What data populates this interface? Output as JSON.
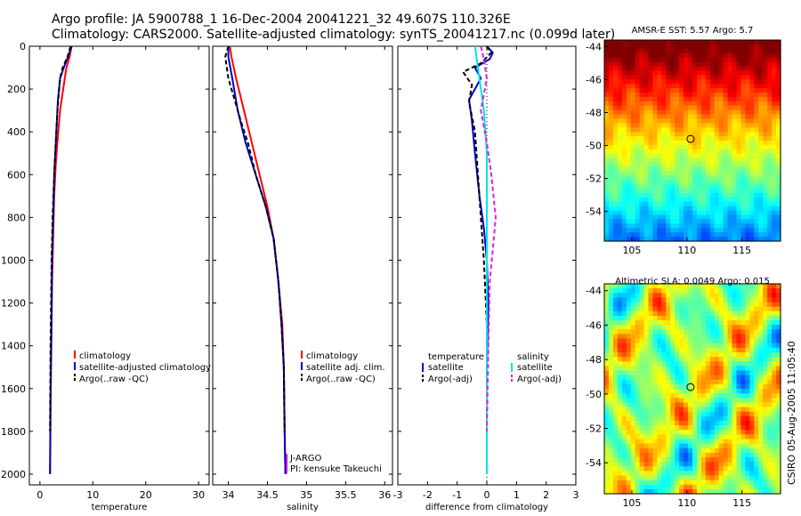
{
  "header": {
    "title_line1": "Argo profile: JA 5900788_1 16-Dec-2004 20041221_32 49.607S 110.326E",
    "title_line2": "Climatology: CARS2000. Satellite-adjusted climatology: synTS_20041217.nc (0.099d later)"
  },
  "side_credit": "CSIRO 05-Aug-2005 11:05:40",
  "colors": {
    "climatology": "#ff0000",
    "satellite": "#0000cc",
    "argo": "#000000",
    "salinity_sat": "#00e5e5",
    "salinity_argo": "#e020e0"
  },
  "chart_data": [
    {
      "type": "line",
      "xlabel": "temperature",
      "ylabel": "",
      "xlim": [
        -2,
        32
      ],
      "ylim": [
        2050,
        0
      ],
      "xticks": [
        0,
        10,
        20,
        30
      ],
      "yticks": [
        0,
        200,
        400,
        600,
        800,
        1000,
        1200,
        1400,
        1600,
        1800,
        2000
      ],
      "legend": [
        "climatology",
        "satellite-adjusted climatology",
        "Argo(..raw -QC)"
      ],
      "legend_position": "lower-right",
      "series": [
        {
          "name": "climatology",
          "color": "#ff0000",
          "dash": "",
          "x": [
            6.0,
            5.6,
            5.0,
            4.4,
            3.8,
            3.3,
            3.0,
            2.7,
            2.5,
            2.3,
            2.2,
            2.1,
            2.0,
            1.95,
            1.9
          ],
          "y": [
            0,
            50,
            100,
            200,
            300,
            450,
            550,
            700,
            900,
            1100,
            1300,
            1500,
            1700,
            1900,
            2000
          ]
        },
        {
          "name": "satellite-adjusted climatology",
          "color": "#0000cc",
          "dash": "",
          "x": [
            6.0,
            5.3,
            4.5,
            3.8,
            3.4,
            3.0,
            2.7,
            2.5,
            2.3,
            2.2,
            2.1,
            2.0,
            1.95,
            1.9
          ],
          "y": [
            0,
            50,
            100,
            150,
            250,
            450,
            600,
            800,
            1000,
            1200,
            1400,
            1600,
            1800,
            2000
          ]
        },
        {
          "name": "Argo(..raw -QC)",
          "color": "#000000",
          "dash": "5,3",
          "x": [
            5.8,
            5.2,
            4.3,
            3.8,
            3.3,
            3.0,
            2.7,
            2.4,
            2.2,
            2.1,
            2.0,
            1.95,
            1.9
          ],
          "y": [
            0,
            50,
            100,
            150,
            300,
            450,
            600,
            800,
            1000,
            1200,
            1400,
            1600,
            1800
          ]
        }
      ]
    },
    {
      "type": "line",
      "xlabel": "salinity",
      "ylabel": "",
      "xlim": [
        33.8,
        36.1
      ],
      "ylim": [
        2050,
        0
      ],
      "xticks": [
        34,
        34.5,
        35,
        35.5,
        36
      ],
      "legend": [
        "climatology",
        "satellite adj. clim.",
        "Argo(..raw -QC)"
      ],
      "legend_position": "lower-right",
      "annotations": [
        "J-ARGO",
        "PI: kensuke Takeuchi"
      ],
      "series": [
        {
          "name": "climatology",
          "color": "#ff0000",
          "dash": "",
          "x": [
            34.02,
            34.04,
            34.1,
            34.2,
            34.3,
            34.4,
            34.5,
            34.58,
            34.64,
            34.69,
            34.71,
            34.72,
            34.73
          ],
          "y": [
            0,
            50,
            150,
            300,
            450,
            600,
            750,
            900,
            1100,
            1300,
            1500,
            1800,
            2000
          ]
        },
        {
          "name": "satellite adj. clim.",
          "color": "#0000cc",
          "dash": "",
          "x": [
            34.0,
            34.0,
            34.05,
            34.12,
            34.22,
            34.35,
            34.48,
            34.58,
            34.64,
            34.68,
            34.71,
            34.72,
            34.73
          ],
          "y": [
            0,
            50,
            150,
            300,
            450,
            600,
            750,
            900,
            1100,
            1300,
            1500,
            1800,
            2000
          ]
        },
        {
          "name": "Argo(..raw -QC)",
          "color": "#000000",
          "dash": "5,3",
          "x": [
            34.0,
            33.96,
            34.0,
            34.08,
            34.16,
            34.25,
            34.35,
            34.48,
            34.58,
            34.64,
            34.68,
            34.71,
            34.72
          ],
          "y": [
            0,
            50,
            150,
            250,
            350,
            450,
            600,
            750,
            900,
            1100,
            1300,
            1500,
            1800
          ]
        }
      ]
    },
    {
      "type": "line",
      "xlabel": "difference from climatology",
      "ylabel": "",
      "xlim": [
        -3,
        3
      ],
      "ylim": [
        2050,
        0
      ],
      "xticks": [
        -3,
        -2,
        -1,
        0,
        1,
        2,
        3
      ],
      "legend_temperature_header": "temperature",
      "legend_salinity_header": "salinity",
      "legend": [
        "satellite",
        "Argo(-adj)",
        "satellite",
        "Argo(-adj)"
      ],
      "legend_position": "lower",
      "series": [
        {
          "name": "temperature satellite",
          "color": "#0000cc",
          "dash": "",
          "x": [
            0.0,
            0.2,
            0.1,
            -0.4,
            -0.2,
            -0.6,
            -0.5,
            -0.4,
            -0.25,
            -0.1,
            0.0,
            0.05,
            0.0,
            0.0,
            0.0
          ],
          "y": [
            0,
            30,
            60,
            100,
            150,
            250,
            350,
            500,
            700,
            850,
            1000,
            1200,
            1500,
            1800,
            2000
          ]
        },
        {
          "name": "temperature Argo(-adj)",
          "color": "#000000",
          "dash": "5,3",
          "x": [
            0.0,
            0.15,
            -0.2,
            -0.8,
            -0.5,
            -0.6,
            -0.4,
            -0.3,
            -0.2,
            -0.1,
            0.0,
            0.0
          ],
          "y": [
            0,
            30,
            80,
            120,
            180,
            260,
            400,
            600,
            800,
            1000,
            1300,
            1800
          ]
        },
        {
          "name": "salinity satellite",
          "color": "#00e5e5",
          "dash": "",
          "x": [
            -0.4,
            -0.3,
            -0.1,
            0.0,
            0.0,
            0.0,
            0.0,
            0.0,
            0.0,
            0.0
          ],
          "y": [
            0,
            100,
            300,
            500,
            800,
            1000,
            1200,
            1500,
            1800,
            2000
          ]
        },
        {
          "name": "salinity Argo(-adj)",
          "color": "#e020e0",
          "dash": "5,3",
          "x": [
            -0.2,
            -0.1,
            0.0,
            -0.2,
            0.0,
            0.15,
            0.3,
            0.2,
            0.1,
            0.05,
            0.0
          ],
          "y": [
            0,
            60,
            150,
            300,
            450,
            600,
            800,
            950,
            1100,
            1400,
            1800
          ]
        }
      ]
    },
    {
      "type": "heatmap",
      "title": "AMSR-E SST: 5.57 Argo: 5.7",
      "xlim": [
        102.5,
        118.5
      ],
      "ylim": [
        -55.8,
        -43.6
      ],
      "xticks": [
        105,
        110,
        115
      ],
      "yticks": [
        -44,
        -46,
        -48,
        -50,
        -52,
        -54
      ],
      "marker": {
        "x": 110.33,
        "y": -49.6
      },
      "colormap": "jet",
      "pattern": "meridional gradient, warm (red) in north to cold (light blue) in south"
    },
    {
      "type": "heatmap",
      "title": "Altimetric SLA: 0.0049 Argo: 0.015",
      "xlim": [
        102.5,
        118.5
      ],
      "ylim": [
        -55.8,
        -43.6
      ],
      "xticks": [
        105,
        110,
        115
      ],
      "yticks": [
        -44,
        -46,
        -48,
        -50,
        -52,
        -54
      ],
      "marker": {
        "x": 110.33,
        "y": -49.6
      },
      "colormap": "jet",
      "pattern": "mesoscale eddy field, mostly green with yellow/orange highs and cyan/blue lows"
    }
  ]
}
